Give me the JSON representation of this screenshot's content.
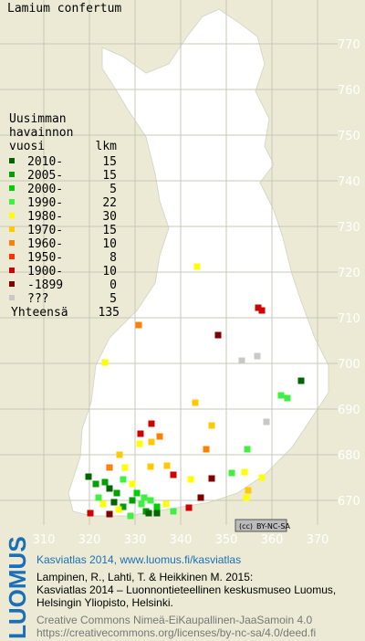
{
  "title": "Lamium confertum",
  "legend": {
    "heading": [
      "Uusimman",
      "havainnon"
    ],
    "columns": [
      "vuosi",
      "lkm"
    ],
    "rows": [
      {
        "label": "2010-",
        "count": 15,
        "color": "#006400"
      },
      {
        "label": "2005-",
        "count": 15,
        "color": "#00a000"
      },
      {
        "label": "2000-",
        "count": 5,
        "color": "#00d000"
      },
      {
        "label": "1990-",
        "count": 22,
        "color": "#40f040"
      },
      {
        "label": "1980-",
        "count": 30,
        "color": "#ffff00"
      },
      {
        "label": "1970-",
        "count": 15,
        "color": "#ffc800"
      },
      {
        "label": "1960-",
        "count": 10,
        "color": "#ff8000"
      },
      {
        "label": "1950-",
        "count": 8,
        "color": "#ff3000"
      },
      {
        "label": "1900-",
        "count": 10,
        "color": "#d00000"
      },
      {
        "label": "-1899",
        "count": 0,
        "color": "#800000"
      },
      {
        "label": "???",
        "count": 5,
        "color": "#c8c8c8"
      }
    ],
    "total": {
      "label": "Yhteensä",
      "count": 135
    }
  },
  "grid": {
    "x_labels": [
      "310",
      "320",
      "330",
      "340",
      "350",
      "360",
      "370"
    ],
    "y_labels": [
      "770",
      "760",
      "750",
      "740",
      "730",
      "720",
      "710",
      "700",
      "690",
      "680",
      "670"
    ]
  },
  "license_badge": "BY-NC-SA",
  "footer": {
    "brand": "LUOMUS",
    "headline": "Kasviatlas 2014, www.luomus.fi/kasviatlas",
    "citation": [
      "Lampinen, R., Lahti, T. & Heikkinen M. 2015:",
      "Kasviatlas 2014 – Luonnontieteellinen keskusmuseo Luomus,",
      "Helsingin Yliopisto, Helsinki."
    ],
    "license": [
      "Creative Commons Nimeä-EiKaupallinen-JaaSamoin 4.0",
      "https://creativecommons.org/licenses/by-nc-sa/4.0/deed.fi"
    ]
  }
}
